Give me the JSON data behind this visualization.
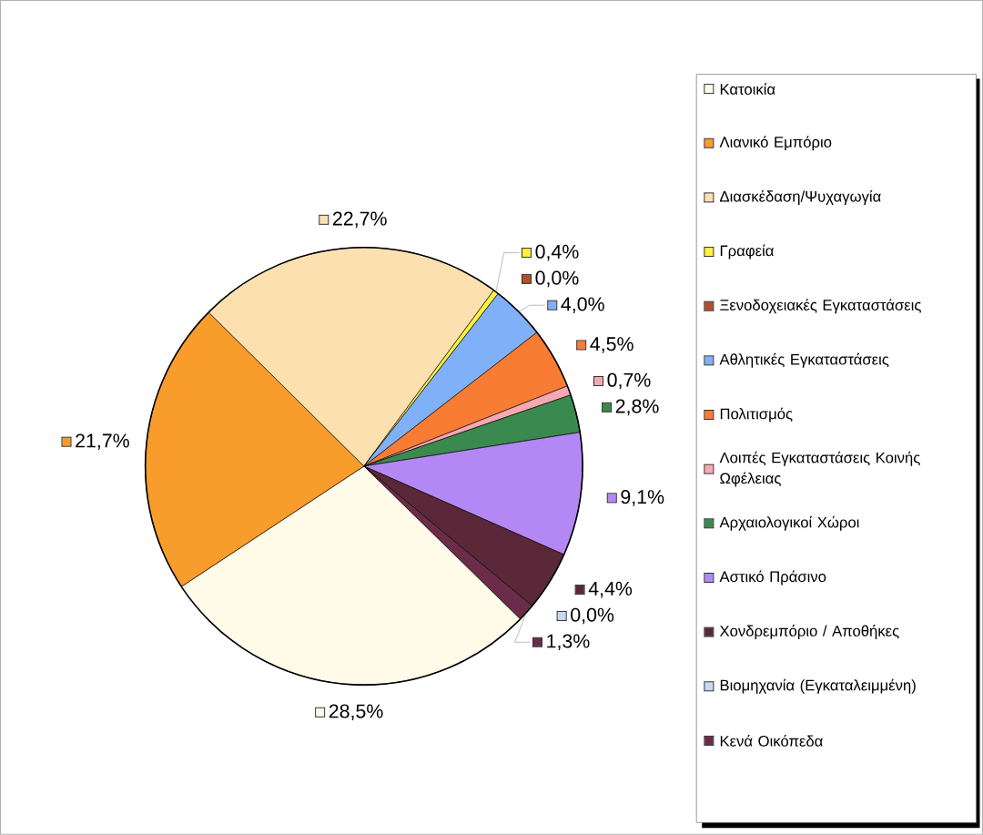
{
  "chart_data": {
    "type": "pie",
    "categories": [
      "Κατοικία",
      "Λιανικό Εμπόριο",
      "Διασκέδαση/Ψυχαγωγία",
      "Γραφεία",
      "Ξενοδοχειακές Εγκαταστάσεις",
      "Αθλητικές Εγκαταστάσεις",
      "Πολιτισμός",
      "Λοιπές Εγκαταστάσεις Κοινής Ωφέλειας",
      "Αρχαιολογικοί Χώροι",
      "Αστικό Πράσινο",
      "Χονδρεμπόριο / Αποθήκες",
      "Βιομηχανία (Εγκαταλειμμένη)",
      "Κενά Οικόπεδα"
    ],
    "values": [
      28.5,
      21.7,
      22.7,
      0.4,
      0.0,
      4.0,
      4.5,
      0.7,
      2.8,
      9.1,
      4.4,
      0.0,
      1.3
    ],
    "value_labels": [
      "28,5%",
      "21,7%",
      "22,7%",
      "0,4%",
      "0,0%",
      "4,0%",
      "4,5%",
      "0,7%",
      "2,8%",
      "9,1%",
      "4,4%",
      "0,0%",
      "1,3%"
    ],
    "colors": [
      "#fffbe8",
      "#f89c2c",
      "#fce0b0",
      "#fff040",
      "#b05028",
      "#80b0f8",
      "#f87c34",
      "#f8a8b0",
      "#3a8a50",
      "#b488f4",
      "#5a2838",
      "#c8d8f0",
      "#6a2c48"
    ],
    "legend": "right"
  }
}
